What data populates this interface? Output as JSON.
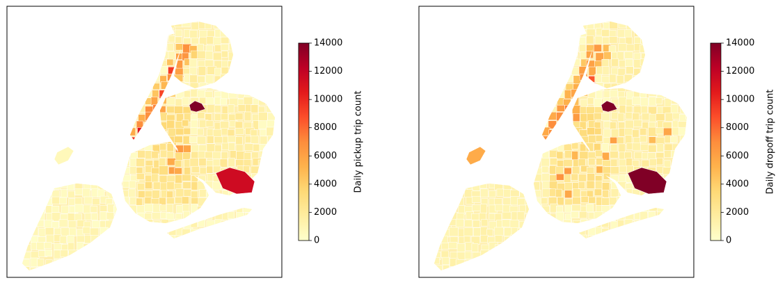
{
  "figure": {
    "panels": [
      {
        "id": "pickup",
        "colorbar": {
          "label": "Daily pickup trip count",
          "ticks": [
            "0",
            "2000",
            "4000",
            "6000",
            "8000",
            "10000",
            "12000",
            "14000"
          ],
          "range": [
            0,
            14000
          ],
          "colormap": "YlOrRd"
        },
        "highlight_level": 0.82,
        "staten_island_level": 0.05
      },
      {
        "id": "dropoff",
        "colorbar": {
          "label": "Daily dropoff trip count",
          "ticks": [
            "0",
            "2000",
            "4000",
            "6000",
            "8000",
            "10000",
            "12000",
            "14000"
          ],
          "range": [
            0,
            14000
          ],
          "colormap": "YlOrRd"
        },
        "highlight_level": 1.0,
        "staten_island_level": 0.4
      }
    ]
  },
  "colors": {
    "colormap_stops": [
      "#ffffcc",
      "#ffeda0",
      "#fed976",
      "#feb24c",
      "#fd8d3c",
      "#fc4e2a",
      "#e31a1c",
      "#bd0026",
      "#800026"
    ],
    "frame": "#000000",
    "tile_edge": "#ffffff"
  }
}
